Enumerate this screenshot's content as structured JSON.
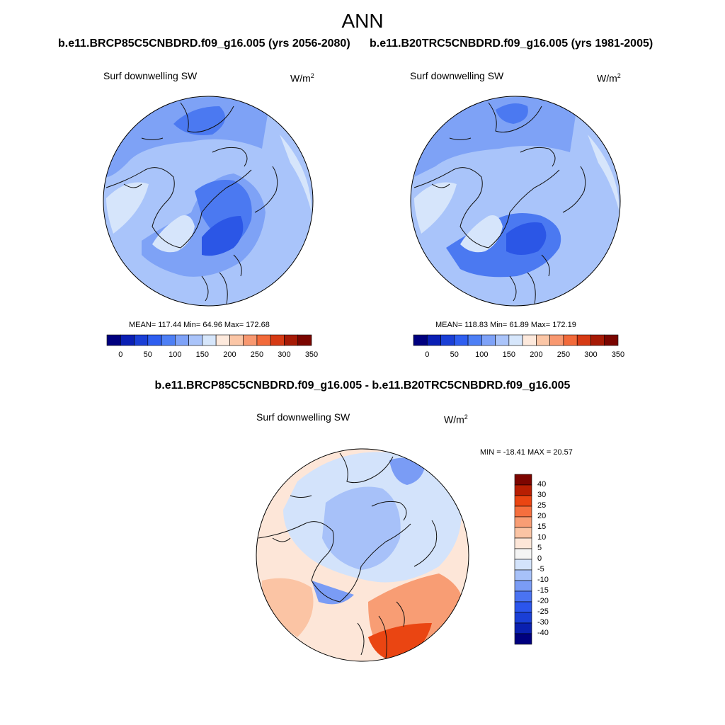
{
  "figure": {
    "title": "ANN",
    "left_title": "b.e11.BRCP85C5CNBDRD.f09_g16.005 (yrs 2056-2080)",
    "right_title": "b.e11.B20TRC5CNBDRD.f09_g16.005 (yrs 1981-2005)",
    "diff_title": "b.e11.BRCP85C5CNBDRD.f09_g16.005 - b.e11.B20TRC5CNBDRD.f09_g16.005"
  },
  "panels": {
    "left": {
      "variable": "Surf downwelling SW",
      "units": "W/m",
      "units_exp": "2",
      "stats": "MEAN= 117.44  Min=  64.96  Max= 172.68"
    },
    "right": {
      "variable": "Surf downwelling SW",
      "units": "W/m",
      "units_exp": "2",
      "stats": "MEAN= 118.83  Min=  61.89  Max= 172.19"
    },
    "diff": {
      "variable": "Surf downwelling SW",
      "units": "W/m",
      "units_exp": "2",
      "stats": "MIN = -18.41 MAX =  20.57"
    }
  },
  "colorbars": {
    "abs_colors": [
      "#00007f",
      "#0a1fb4",
      "#1a3fd6",
      "#2e5ef0",
      "#4d7ff5",
      "#7ea2f8",
      "#aac4fa",
      "#d6e6fb",
      "#fde9dc",
      "#fbc6a6",
      "#f89870",
      "#f26a3a",
      "#d63a14",
      "#a61a05",
      "#7a0500"
    ],
    "abs_labels": [
      "0",
      "50",
      "100",
      "150",
      "200",
      "250",
      "300",
      "350"
    ],
    "diff_colors": [
      "#00007f",
      "#0a20b0",
      "#1a3fd6",
      "#2b55ec",
      "#4a73f2",
      "#7a9cf5",
      "#a7c1f9",
      "#d3e3fb",
      "#f4f4f4",
      "#fde6d8",
      "#fbc4a4",
      "#f89d74",
      "#f56f3e",
      "#ea4512",
      "#b81e02",
      "#7d0500"
    ],
    "diff_labels": [
      "40",
      "30",
      "25",
      "20",
      "15",
      "10",
      "5",
      "0",
      "-5",
      "-10",
      "-15",
      "-20",
      "-25",
      "-30",
      "-40"
    ]
  },
  "map_colors": {
    "very_dark": "#2b56e6",
    "dark": "#4b79f1",
    "mid": "#7ea2f6",
    "light": "#a9c4fa",
    "pale": "#d6e5fb",
    "diff_pale_blue": "#d3e3fb",
    "diff_light_blue": "#a7c1f9",
    "diff_mid_blue": "#7a9cf5",
    "diff_neutral": "#f4f4f4",
    "diff_peach": "#fde6d8",
    "diff_light_orange": "#fbc4a4",
    "diff_orange": "#f89d74",
    "diff_red": "#ea4512"
  }
}
